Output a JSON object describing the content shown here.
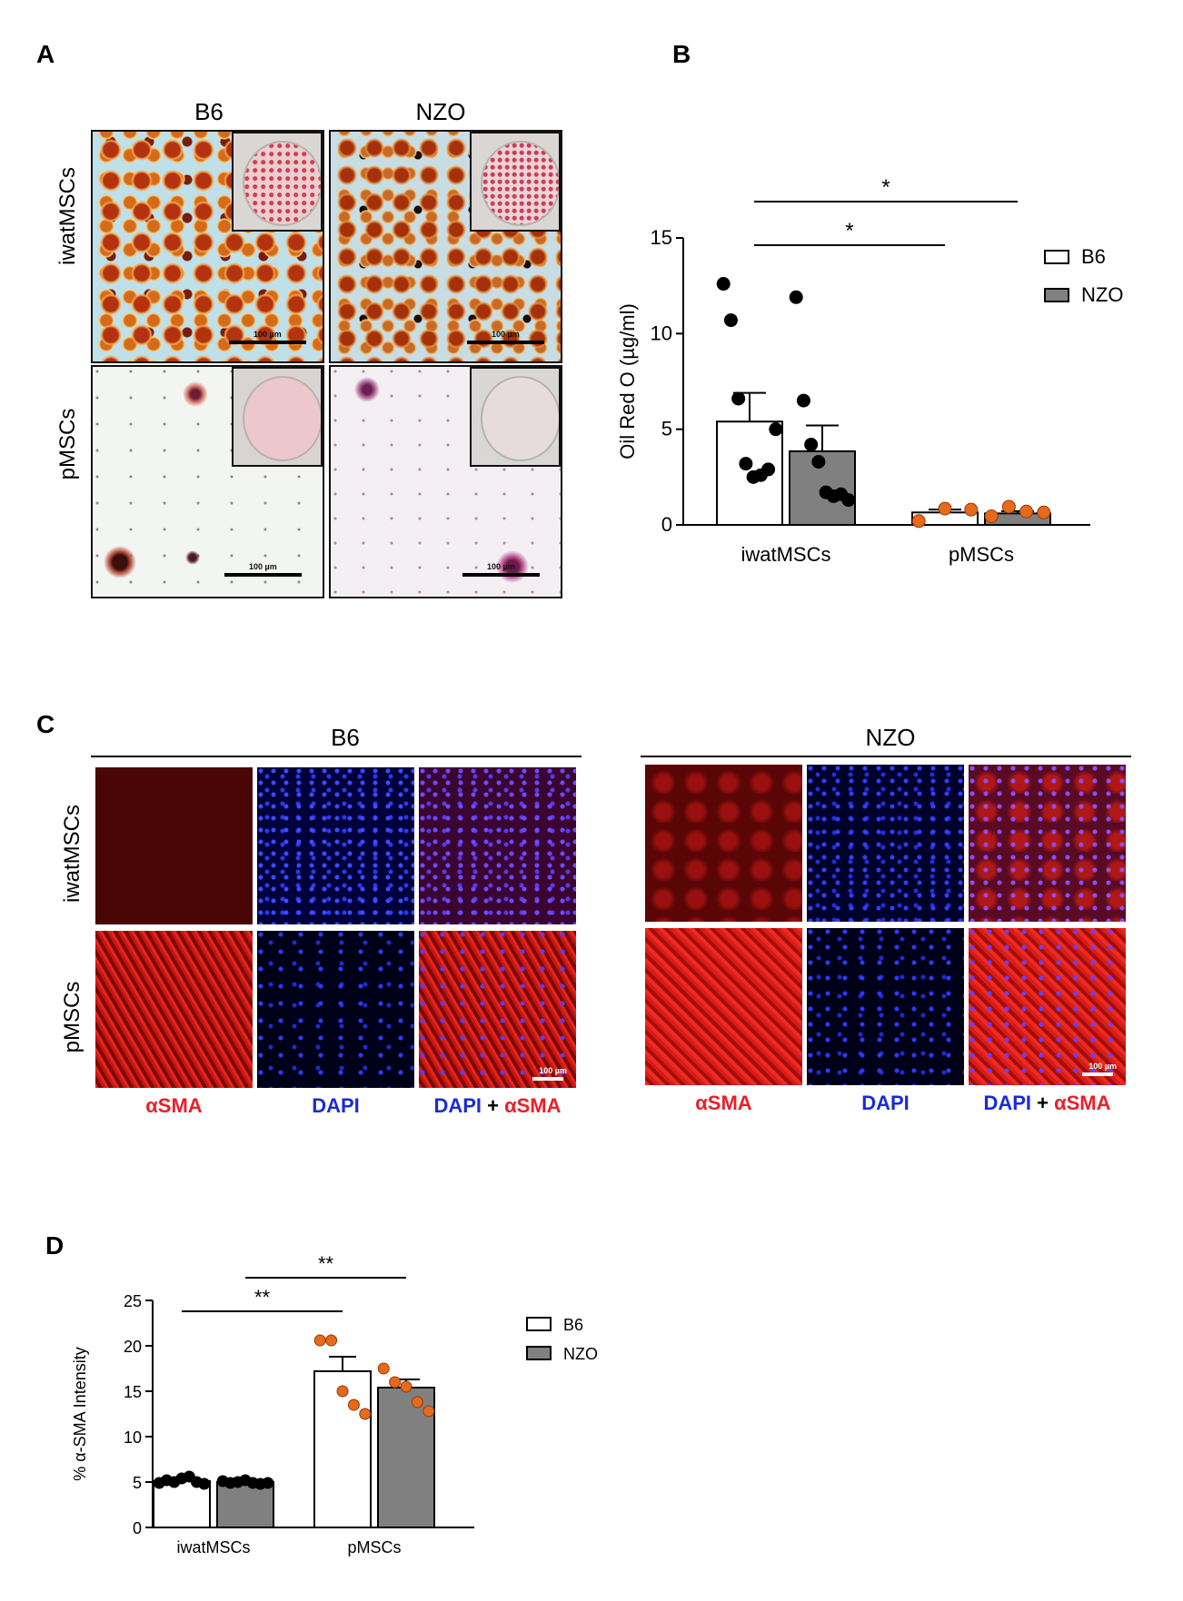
{
  "panelA": {
    "label": "A",
    "columns": [
      "B6",
      "NZO"
    ],
    "rows": [
      "iwatMSCs",
      "pMSCs"
    ],
    "scalebar": "100 µm"
  },
  "panelC": {
    "label": "C",
    "groups": [
      "B6",
      "NZO"
    ],
    "rows": [
      "iwatMSCs",
      "pMSCs"
    ],
    "channels": {
      "asma": "αSMA",
      "dapi": "DAPI",
      "plus": " + "
    },
    "scalebar": "100 µm"
  },
  "colors": {
    "b6_fill": "#ffffff",
    "nzo_fill": "#808080",
    "orange_point": "#e46a1c",
    "black_point": "#000000"
  },
  "chart_data": [
    {
      "id": "B",
      "label": "B",
      "type": "bar",
      "categories": [
        "iwatMSCs",
        "pMSCs"
      ],
      "ylabel": "Oil Red O (µg/ml)",
      "ylim": [
        0,
        15
      ],
      "yticks": [
        0,
        5,
        10,
        15
      ],
      "legend_position": "top-right",
      "series": [
        {
          "name": "B6",
          "means": [
            5.4,
            0.65
          ],
          "sem": [
            1.5,
            0.15
          ],
          "points": [
            [
              12.6,
              10.7,
              6.6,
              3.2,
              2.5,
              2.6,
              2.9,
              5.0
            ],
            [
              0.2,
              0.85,
              0.8
            ]
          ]
        },
        {
          "name": "NZO",
          "means": [
            3.85,
            0.6
          ],
          "sem": [
            1.35,
            0.12
          ],
          "points": [
            [
              11.9,
              6.5,
              4.2,
              3.3,
              1.7,
              1.5,
              1.6,
              1.3
            ],
            [
              0.45,
              0.95,
              0.7,
              0.65
            ]
          ]
        }
      ],
      "significance": [
        {
          "from": 0,
          "to": "pMSCs-B6",
          "label": "*"
        },
        {
          "from": 0,
          "to": "pMSCs-NZO",
          "label": "*"
        }
      ]
    },
    {
      "id": "D",
      "label": "D",
      "type": "bar",
      "categories": [
        "iwatMSCs",
        "pMSCs"
      ],
      "ylabel": "% α-SMA Intensity",
      "ylim": [
        0,
        25
      ],
      "yticks": [
        0,
        5,
        10,
        15,
        20,
        25
      ],
      "legend_position": "top-right",
      "series": [
        {
          "name": "B6",
          "means": [
            5.1,
            17.2
          ],
          "sem": [
            0.2,
            1.6
          ],
          "points": [
            [
              4.9,
              5.2,
              5.0,
              5.4,
              5.6,
              5.0,
              4.8
            ],
            [
              20.6,
              20.6,
              15.0,
              13.5,
              12.5
            ]
          ]
        },
        {
          "name": "NZO",
          "means": [
            5.0,
            15.4
          ],
          "sem": [
            0.15,
            0.9
          ],
          "points": [
            [
              5.1,
              4.9,
              5.0,
              5.2,
              4.9,
              4.8,
              4.9
            ],
            [
              17.5,
              16.0,
              15.5,
              13.8,
              12.8
            ]
          ]
        }
      ],
      "significance": [
        {
          "from": "iwatMSCs-B6",
          "to": "pMSCs-B6",
          "label": "**"
        },
        {
          "from": "iwatMSCs-NZO",
          "to": "pMSCs-NZO",
          "label": "**"
        }
      ]
    }
  ]
}
